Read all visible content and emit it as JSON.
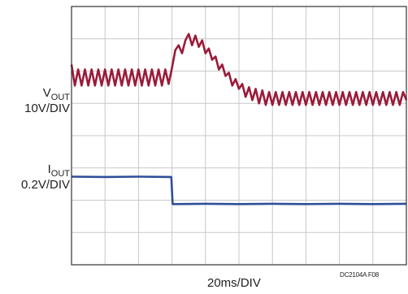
{
  "chart_data": {
    "type": "line",
    "grid": true,
    "x_divisions": 10,
    "y_divisions": 8,
    "series": [
      {
        "name": "VOUT",
        "color": "#9a1b3a",
        "scale": "10V/DIV",
        "points_div": [
          [
            0.0,
            6.2
          ],
          [
            0.1,
            5.55
          ],
          [
            0.2,
            6.05
          ],
          [
            0.3,
            5.55
          ],
          [
            0.4,
            6.05
          ],
          [
            0.5,
            5.55
          ],
          [
            0.6,
            6.05
          ],
          [
            0.7,
            5.55
          ],
          [
            0.8,
            6.05
          ],
          [
            0.9,
            5.55
          ],
          [
            1.0,
            6.05
          ],
          [
            1.1,
            5.55
          ],
          [
            1.2,
            6.05
          ],
          [
            1.3,
            5.55
          ],
          [
            1.4,
            6.05
          ],
          [
            1.5,
            5.55
          ],
          [
            1.6,
            6.05
          ],
          [
            1.7,
            5.55
          ],
          [
            1.8,
            6.05
          ],
          [
            1.9,
            5.55
          ],
          [
            2.0,
            6.05
          ],
          [
            2.1,
            5.55
          ],
          [
            2.2,
            6.05
          ],
          [
            2.3,
            5.55
          ],
          [
            2.4,
            6.05
          ],
          [
            2.5,
            5.55
          ],
          [
            2.6,
            6.05
          ],
          [
            2.7,
            5.55
          ],
          [
            2.8,
            6.05
          ],
          [
            2.9,
            5.6
          ],
          [
            3.0,
            6.1
          ],
          [
            3.1,
            6.65
          ],
          [
            3.2,
            6.8
          ],
          [
            3.3,
            6.55
          ],
          [
            3.4,
            6.95
          ],
          [
            3.5,
            7.15
          ],
          [
            3.6,
            6.8
          ],
          [
            3.7,
            7.1
          ],
          [
            3.8,
            6.75
          ],
          [
            3.9,
            6.95
          ],
          [
            4.0,
            6.55
          ],
          [
            4.1,
            6.7
          ],
          [
            4.2,
            6.35
          ],
          [
            4.3,
            6.45
          ],
          [
            4.4,
            6.05
          ],
          [
            4.5,
            6.2
          ],
          [
            4.6,
            5.85
          ],
          [
            4.7,
            5.95
          ],
          [
            4.8,
            5.55
          ],
          [
            4.9,
            5.75
          ],
          [
            5.0,
            5.45
          ],
          [
            5.1,
            5.6
          ],
          [
            5.2,
            5.2
          ],
          [
            5.3,
            5.5
          ],
          [
            5.4,
            5.1
          ],
          [
            5.5,
            5.45
          ],
          [
            5.6,
            5.0
          ],
          [
            5.7,
            5.4
          ],
          [
            5.8,
            4.95
          ],
          [
            5.9,
            5.35
          ],
          [
            6.0,
            4.95
          ],
          [
            6.1,
            5.35
          ],
          [
            6.2,
            4.95
          ],
          [
            6.3,
            5.35
          ],
          [
            6.4,
            4.95
          ],
          [
            6.5,
            5.35
          ],
          [
            6.6,
            4.95
          ],
          [
            6.7,
            5.35
          ],
          [
            6.8,
            4.95
          ],
          [
            6.9,
            5.35
          ],
          [
            7.0,
            4.95
          ],
          [
            7.1,
            5.35
          ],
          [
            7.2,
            4.95
          ],
          [
            7.3,
            5.35
          ],
          [
            7.4,
            4.95
          ],
          [
            7.5,
            5.35
          ],
          [
            7.6,
            4.95
          ],
          [
            7.7,
            5.35
          ],
          [
            7.8,
            4.95
          ],
          [
            7.9,
            5.35
          ],
          [
            8.0,
            4.95
          ],
          [
            8.1,
            5.35
          ],
          [
            8.2,
            4.95
          ],
          [
            8.3,
            5.35
          ],
          [
            8.4,
            4.95
          ],
          [
            8.5,
            5.35
          ],
          [
            8.6,
            4.95
          ],
          [
            8.7,
            5.35
          ],
          [
            8.8,
            4.95
          ],
          [
            8.9,
            5.35
          ],
          [
            9.0,
            4.95
          ],
          [
            9.1,
            5.35
          ],
          [
            9.2,
            4.95
          ],
          [
            9.3,
            5.35
          ],
          [
            9.4,
            4.95
          ],
          [
            9.5,
            5.35
          ],
          [
            9.6,
            4.95
          ],
          [
            9.7,
            5.35
          ],
          [
            9.8,
            4.95
          ],
          [
            9.9,
            5.35
          ],
          [
            10.0,
            5.1
          ]
        ]
      },
      {
        "name": "IOUT",
        "color": "#2f4d9a",
        "scale": "0.2V/DIV",
        "points_div": [
          [
            0.0,
            2.73
          ],
          [
            1.0,
            2.72
          ],
          [
            2.0,
            2.73
          ],
          [
            2.98,
            2.72
          ],
          [
            3.02,
            1.88
          ],
          [
            4.0,
            1.89
          ],
          [
            5.0,
            1.88
          ],
          [
            6.0,
            1.89
          ],
          [
            7.0,
            1.88
          ],
          [
            8.0,
            1.89
          ],
          [
            9.0,
            1.88
          ],
          [
            10.0,
            1.89
          ]
        ]
      }
    ],
    "vout_label": {
      "main": "V",
      "sub": "OUT",
      "scale": "10V/DIV"
    },
    "iout_label": {
      "main": "I",
      "sub": "OUT",
      "scale": "0.2V/DIV"
    },
    "xlabel": "20ms/DIV",
    "figure_id": "DC2104A F08"
  }
}
